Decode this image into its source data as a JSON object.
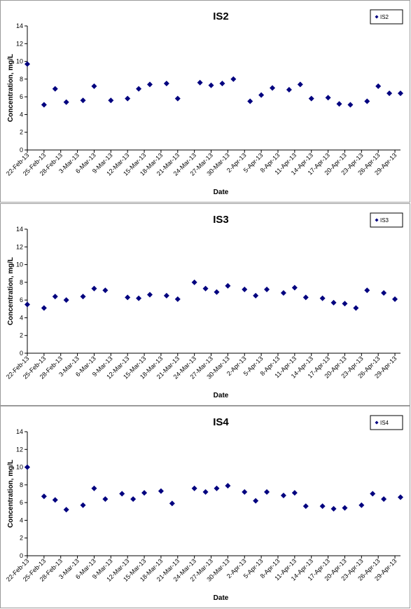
{
  "colors": {
    "marker": "#00007f",
    "axis": "#000000",
    "frame": "#9a9a9a"
  },
  "chart_data": [
    {
      "type": "scatter",
      "title": "IS2",
      "xlabel": "Date",
      "ylabel": "Concentration, mg/L",
      "ylim": [
        0,
        14
      ],
      "yticks": [
        0,
        2,
        4,
        6,
        8,
        10,
        12,
        14
      ],
      "grid": false,
      "legend_position": "top-right",
      "xlim": [
        "22-Feb-13",
        "30-Apr-13"
      ],
      "x_tick_labels": [
        "22-Feb-13",
        "25-Feb-13",
        "28-Feb-13",
        "3-Mar-13",
        "6-Mar-13",
        "9-Mar-13",
        "12-Mar-13",
        "15-Mar-13",
        "18-Mar-13",
        "21-Mar-13",
        "24-Mar-13",
        "27-Mar-13",
        "30-Mar-13",
        "2-Apr-13",
        "5-Apr-13",
        "8-Apr-13",
        "11-Apr-13",
        "14-Apr-13",
        "17-Apr-13",
        "20-Apr-13",
        "23-Apr-13",
        "26-Apr-13",
        "29-Apr-13"
      ],
      "series": [
        {
          "name": "IS2",
          "x": [
            "22-Feb-13",
            "25-Feb-13",
            "27-Feb-13",
            "1-Mar-13",
            "4-Mar-13",
            "6-Mar-13",
            "9-Mar-13",
            "12-Mar-13",
            "14-Mar-13",
            "16-Mar-13",
            "19-Mar-13",
            "21-Mar-13",
            "25-Mar-13",
            "27-Mar-13",
            "29-Mar-13",
            "31-Mar-13",
            "3-Apr-13",
            "5-Apr-13",
            "7-Apr-13",
            "10-Apr-13",
            "12-Apr-13",
            "14-Apr-13",
            "17-Apr-13",
            "19-Apr-13",
            "21-Apr-13",
            "24-Apr-13",
            "26-Apr-13",
            "28-Apr-13",
            "30-Apr-13"
          ],
          "y": [
            9.7,
            5.1,
            6.9,
            5.4,
            5.6,
            7.2,
            5.6,
            5.8,
            6.9,
            7.4,
            7.5,
            5.8,
            7.6,
            7.3,
            7.5,
            8.0,
            5.5,
            6.2,
            7.0,
            6.8,
            7.4,
            5.8,
            5.9,
            5.2,
            5.1,
            5.5,
            7.2,
            6.4,
            6.4
          ]
        }
      ]
    },
    {
      "type": "scatter",
      "title": "IS3",
      "xlabel": "Date",
      "ylabel": "Concentration, mg/L",
      "ylim": [
        0,
        14
      ],
      "yticks": [
        0,
        2,
        4,
        6,
        8,
        10,
        12,
        14
      ],
      "grid": false,
      "legend_position": "top-right",
      "xlim": [
        "22-Feb-13",
        "30-Apr-13"
      ],
      "x_tick_labels": [
        "22-Feb-13",
        "25-Feb-13",
        "28-Feb-13",
        "3-Mar-13",
        "6-Mar-13",
        "9-Mar-13",
        "12-Mar-13",
        "15-Mar-13",
        "18-Mar-13",
        "21-Mar-13",
        "24-Mar-13",
        "27-Mar-13",
        "30-Mar-13",
        "2-Apr-13",
        "5-Apr-13",
        "8-Apr-13",
        "11-Apr-13",
        "14-Apr-13",
        "17-Apr-13",
        "20-Apr-13",
        "23-Apr-13",
        "26-Apr-13",
        "29-Apr-13"
      ],
      "series": [
        {
          "name": "IS3",
          "x": [
            "22-Feb-13",
            "25-Feb-13",
            "27-Feb-13",
            "1-Mar-13",
            "4-Mar-13",
            "6-Mar-13",
            "8-Mar-13",
            "12-Mar-13",
            "14-Mar-13",
            "16-Mar-13",
            "19-Mar-13",
            "21-Mar-13",
            "24-Mar-13",
            "26-Mar-13",
            "28-Mar-13",
            "30-Mar-13",
            "2-Apr-13",
            "4-Apr-13",
            "6-Apr-13",
            "9-Apr-13",
            "11-Apr-13",
            "13-Apr-13",
            "16-Apr-13",
            "18-Apr-13",
            "20-Apr-13",
            "22-Apr-13",
            "24-Apr-13",
            "27-Apr-13",
            "29-Apr-13"
          ],
          "y": [
            5.5,
            5.1,
            6.4,
            6.0,
            6.4,
            7.3,
            7.1,
            6.3,
            6.2,
            6.6,
            6.5,
            6.1,
            8.0,
            7.3,
            6.9,
            7.6,
            7.2,
            6.5,
            7.2,
            6.8,
            7.4,
            6.3,
            6.2,
            5.7,
            5.6,
            5.1,
            7.1,
            6.8,
            6.1
          ]
        }
      ]
    },
    {
      "type": "scatter",
      "title": "IS4",
      "xlabel": "Date",
      "ylabel": "Concentration, mg/L",
      "ylim": [
        0,
        14
      ],
      "yticks": [
        0,
        2,
        4,
        6,
        8,
        10,
        12,
        14
      ],
      "grid": false,
      "legend_position": "top-right",
      "xlim": [
        "22-Feb-13",
        "30-Apr-13"
      ],
      "x_tick_labels": [
        "22-Feb-13",
        "25-Feb-13",
        "28-Feb-13",
        "3-Mar-13",
        "6-Mar-13",
        "9-Mar-13",
        "12-Mar-13",
        "15-Mar-13",
        "18-Mar-13",
        "21-Mar-13",
        "24-Mar-13",
        "27-Mar-13",
        "30-Mar-13",
        "2-Apr-13",
        "5-Apr-13",
        "8-Apr-13",
        "11-Apr-13",
        "14-Apr-13",
        "17-Apr-13",
        "20-Apr-13",
        "23-Apr-13",
        "26-Apr-13",
        "29-Apr-13"
      ],
      "series": [
        {
          "name": "IS4",
          "x": [
            "22-Feb-13",
            "25-Feb-13",
            "27-Feb-13",
            "1-Mar-13",
            "4-Mar-13",
            "6-Mar-13",
            "8-Mar-13",
            "11-Mar-13",
            "13-Mar-13",
            "15-Mar-13",
            "18-Mar-13",
            "20-Mar-13",
            "24-Mar-13",
            "26-Mar-13",
            "28-Mar-13",
            "30-Mar-13",
            "2-Apr-13",
            "4-Apr-13",
            "6-Apr-13",
            "9-Apr-13",
            "11-Apr-13",
            "13-Apr-13",
            "16-Apr-13",
            "18-Apr-13",
            "20-Apr-13",
            "23-Apr-13",
            "25-Apr-13",
            "27-Apr-13",
            "30-Apr-13"
          ],
          "y": [
            10.0,
            6.7,
            6.3,
            5.2,
            5.7,
            7.6,
            6.4,
            7.0,
            6.4,
            7.1,
            7.3,
            5.9,
            7.6,
            7.2,
            7.6,
            7.9,
            7.2,
            6.2,
            7.2,
            6.8,
            7.1,
            5.6,
            5.6,
            5.3,
            5.4,
            5.7,
            7.0,
            6.4,
            6.6
          ]
        }
      ]
    }
  ]
}
